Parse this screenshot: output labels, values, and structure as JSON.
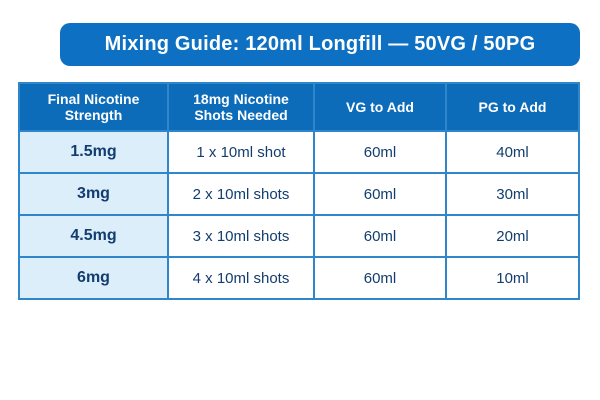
{
  "title": "Mixing Guide: 120ml Longfill — 50VG / 50PG",
  "colors": {
    "title_bar_blue": "#0e70c2",
    "header_blue": "#0d6cba",
    "border_blue": "#2f86ca",
    "strength_cell_blue": "#ddeefb",
    "text_navy": "#123d6e",
    "background": "#ffffff"
  },
  "table": {
    "headers": [
      "Final Nicotine Strength",
      "18mg Nicotine Shots Needed",
      "VG to Add",
      "PG to Add"
    ],
    "rows": [
      [
        "1.5mg",
        "1 x 10ml shot",
        "60ml",
        "40ml"
      ],
      [
        "3mg",
        "2 x 10ml shots",
        "60ml",
        "30ml"
      ],
      [
        "4.5mg",
        "3 x 10ml shots",
        "60ml",
        "20ml"
      ],
      [
        "6mg",
        "4 x 10ml shots",
        "60ml",
        "10ml"
      ]
    ]
  },
  "chart_data": {
    "type": "table",
    "title": "Mixing Guide: 120ml Longfill — 50VG / 50PG",
    "columns": [
      "Final Nicotine Strength",
      "18mg Nicotine Shots Needed",
      "VG to Add",
      "PG to Add"
    ],
    "rows": [
      [
        "1.5mg",
        "1 x 10ml shot",
        "60ml",
        "40ml"
      ],
      [
        "3mg",
        "2 x 10ml shots",
        "60ml",
        "30ml"
      ],
      [
        "4.5mg",
        "3 x 10ml shots",
        "60ml",
        "20ml"
      ],
      [
        "6mg",
        "4 x 10ml shots",
        "60ml",
        "10ml"
      ]
    ],
    "notes": {
      "total_volume_ml": 120,
      "ratio": "50VG / 50PG",
      "shot_strength": "18mg",
      "shot_size_ml": 10
    }
  }
}
